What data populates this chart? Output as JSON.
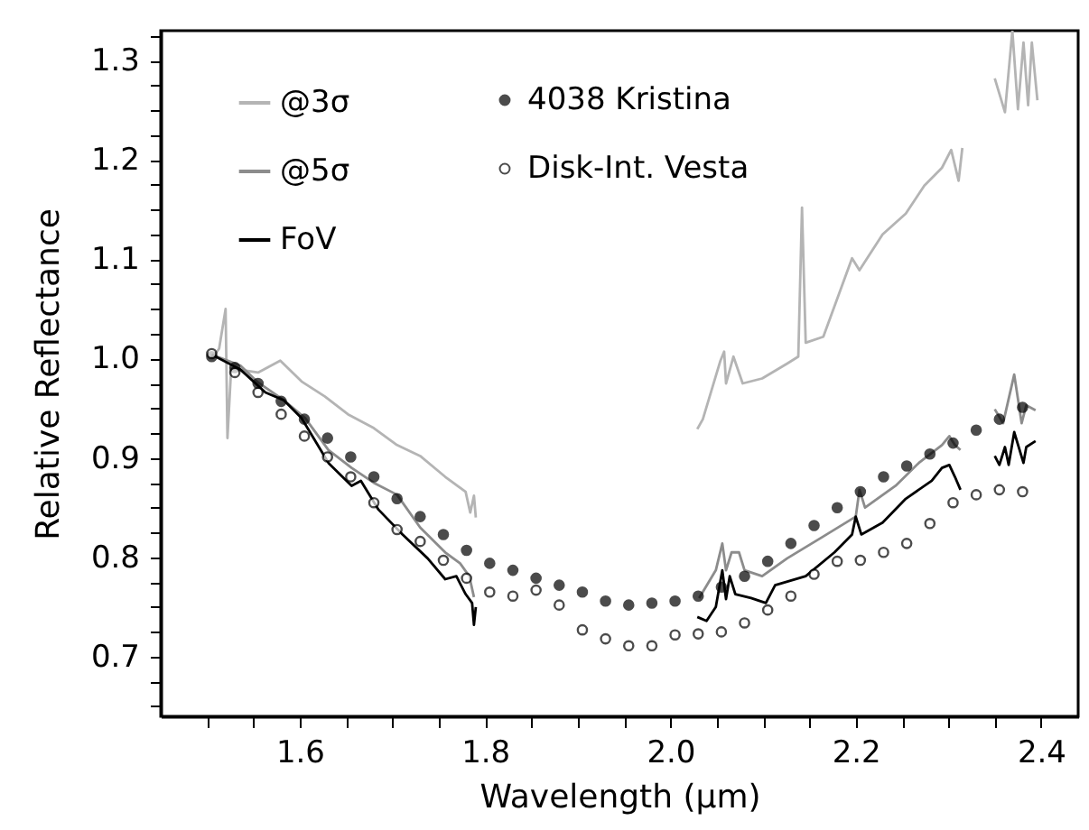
{
  "chart_data": {
    "type": "line",
    "xlabel": "Wavelength (μm)",
    "ylabel": "Relative Reflectance",
    "xlim": [
      1.45,
      2.44
    ],
    "ylim": [
      0.64,
      1.33
    ],
    "xticks": [
      {
        "value": 1.5,
        "label": null
      },
      {
        "value": 1.55,
        "label": null
      },
      1.6,
      {
        "value": 1.65,
        "label": null
      },
      {
        "value": 1.7,
        "label": null
      },
      {
        "value": 1.75,
        "label": null
      },
      1.8,
      {
        "value": 1.85,
        "label": null
      },
      {
        "value": 1.9,
        "label": null
      },
      {
        "value": 1.95,
        "label": null
      },
      {
        "value": 2.0,
        "label": "2.0"
      },
      {
        "value": 2.05,
        "label": null
      },
      {
        "value": 2.1,
        "label": null
      },
      {
        "value": 2.15,
        "label": null
      },
      2.2,
      {
        "value": 2.25,
        "label": null
      },
      {
        "value": 2.3,
        "label": null
      },
      {
        "value": 2.35,
        "label": null
      },
      2.4
    ],
    "yticks": [
      {
        "value": 0.65,
        "label": null
      },
      {
        "value": 0.675,
        "label": null
      },
      0.7,
      {
        "value": 0.725,
        "label": null
      },
      {
        "value": 0.75,
        "label": null
      },
      {
        "value": 0.775,
        "label": null
      },
      0.8,
      {
        "value": 0.825,
        "label": null
      },
      {
        "value": 0.85,
        "label": null
      },
      {
        "value": 0.875,
        "label": null
      },
      0.9,
      {
        "value": 0.925,
        "label": null
      },
      {
        "value": 0.95,
        "label": null
      },
      {
        "value": 0.975,
        "label": null
      },
      {
        "value": 1.0,
        "label": "1.0"
      },
      {
        "value": 1.025,
        "label": null
      },
      {
        "value": 1.05,
        "label": null
      },
      {
        "value": 1.075,
        "label": null
      },
      1.1,
      {
        "value": 1.125,
        "label": null
      },
      {
        "value": 1.15,
        "label": null
      },
      {
        "value": 1.175,
        "label": null
      },
      1.2,
      {
        "value": 1.225,
        "label": null
      },
      {
        "value": 1.25,
        "label": null
      },
      {
        "value": 1.275,
        "label": null
      },
      1.3,
      {
        "value": 1.325,
        "label": null
      }
    ],
    "grid": false,
    "legend": "top left",
    "series": [
      {
        "name": "@3σ",
        "color": "#b4b4b4",
        "x": [
          1.505,
          1.513,
          1.52,
          1.522,
          1.526,
          1.555,
          1.579,
          1.602,
          1.627,
          1.652,
          1.68,
          1.705,
          1.73,
          1.757,
          1.779,
          1.784,
          1.788,
          1.79,
          1.9,
          2.029,
          2.035,
          2.054,
          2.058,
          2.06,
          2.068,
          2.078,
          2.099,
          2.126,
          2.138,
          2.142,
          2.146,
          2.165,
          2.196,
          2.204,
          2.229,
          2.254,
          2.274,
          2.293,
          2.303,
          2.311,
          2.315,
          2.33,
          2.35,
          2.361,
          2.369,
          2.375,
          2.381,
          2.386,
          2.39,
          2.396
        ],
        "values": [
          1.0,
          1.01,
          1.05,
          0.92,
          0.99,
          0.986,
          0.998,
          0.977,
          0.962,
          0.944,
          0.93,
          0.913,
          0.902,
          0.881,
          0.866,
          0.845,
          0.862,
          0.84,
          null,
          0.929,
          0.939,
          0.998,
          1.007,
          0.975,
          1.002,
          0.975,
          0.98,
          0.995,
          1.002,
          1.152,
          1.016,
          1.022,
          1.101,
          1.089,
          1.125,
          1.146,
          1.174,
          1.192,
          1.21,
          1.179,
          1.212,
          null,
          1.282,
          1.248,
          1.33,
          1.251,
          1.318,
          1.255,
          1.318,
          1.26
        ]
      },
      {
        "name": "@5σ",
        "color": "#8c8c8c",
        "x": [
          1.505,
          1.536,
          1.555,
          1.583,
          1.606,
          1.631,
          1.656,
          1.68,
          1.705,
          1.73,
          1.757,
          1.773,
          1.783,
          1.788,
          1.9,
          2.031,
          2.049,
          2.056,
          2.06,
          2.066,
          2.074,
          2.08,
          2.099,
          2.126,
          2.165,
          2.2,
          2.204,
          2.21,
          2.243,
          2.268,
          2.293,
          2.301,
          2.307,
          2.313,
          2.33,
          2.35,
          2.359,
          2.371,
          2.379,
          2.384,
          2.394
        ],
        "values": [
          1.004,
          0.993,
          0.976,
          0.958,
          0.94,
          0.908,
          0.89,
          0.875,
          0.863,
          0.83,
          0.805,
          0.794,
          0.781,
          0.76,
          null,
          0.759,
          0.787,
          0.814,
          0.787,
          0.805,
          0.805,
          0.787,
          0.781,
          0.799,
          0.821,
          0.841,
          0.868,
          0.85,
          0.872,
          0.895,
          0.913,
          0.922,
          0.913,
          0.908,
          null,
          0.949,
          0.935,
          0.984,
          0.935,
          0.953,
          0.948
        ]
      },
      {
        "name": "FoV",
        "color": "#000000",
        "x": [
          1.505,
          1.536,
          1.563,
          1.583,
          1.602,
          1.631,
          1.656,
          1.666,
          1.685,
          1.711,
          1.738,
          1.757,
          1.769,
          1.779,
          1.786,
          1.788,
          1.79,
          1.9,
          2.029,
          2.039,
          2.049,
          2.056,
          2.06,
          2.064,
          2.07,
          2.087,
          2.103,
          2.113,
          2.146,
          2.177,
          2.196,
          2.2,
          2.206,
          2.229,
          2.254,
          2.282,
          2.293,
          2.301,
          2.307,
          2.313,
          2.33,
          2.35,
          2.355,
          2.361,
          2.365,
          2.371,
          2.381,
          2.384,
          2.394
        ],
        "values": [
          1.004,
          0.989,
          0.966,
          0.958,
          0.94,
          0.895,
          0.872,
          0.877,
          0.848,
          0.823,
          0.799,
          0.778,
          0.781,
          0.763,
          0.754,
          0.732,
          0.75,
          null,
          0.74,
          0.736,
          0.75,
          0.787,
          0.758,
          0.781,
          0.763,
          0.759,
          0.754,
          0.772,
          0.781,
          0.805,
          0.823,
          0.841,
          0.823,
          0.835,
          0.859,
          0.877,
          0.89,
          0.893,
          0.881,
          0.868,
          null,
          0.902,
          0.893,
          0.911,
          0.893,
          0.926,
          0.895,
          0.911,
          0.917
        ]
      },
      {
        "name": "4038 Kristina",
        "type": "scatter",
        "marker": "circle",
        "color": "#000000",
        "x": [
          1.505,
          1.53,
          1.555,
          1.58,
          1.605,
          1.63,
          1.655,
          1.68,
          1.705,
          1.73,
          1.755,
          1.78,
          1.805,
          1.83,
          1.855,
          1.88,
          1.905,
          1.93,
          1.955,
          1.98,
          2.005,
          2.03,
          2.055,
          2.08,
          2.105,
          2.13,
          2.155,
          2.18,
          2.205,
          2.23,
          2.255,
          2.28,
          2.305,
          2.33,
          2.355,
          2.38
        ],
        "values": [
          1.002,
          0.991,
          0.975,
          0.957,
          0.939,
          0.92,
          0.901,
          0.881,
          0.859,
          0.841,
          0.823,
          0.807,
          0.794,
          0.787,
          0.779,
          0.772,
          0.765,
          0.756,
          0.752,
          0.754,
          0.756,
          0.761,
          0.77,
          0.781,
          0.796,
          0.814,
          0.832,
          0.85,
          0.866,
          0.881,
          0.892,
          0.904,
          0.915,
          0.928,
          0.939,
          0.951
        ]
      },
      {
        "name": "Disk-Int. Vesta",
        "type": "scatter",
        "marker": "circle",
        "color": "#ffffff",
        "x": [
          1.505,
          1.53,
          1.555,
          1.58,
          1.605,
          1.63,
          1.655,
          1.68,
          1.705,
          1.73,
          1.755,
          1.78,
          1.805,
          1.83,
          1.855,
          1.88,
          1.905,
          1.93,
          1.955,
          1.98,
          2.005,
          2.03,
          2.055,
          2.08,
          2.105,
          2.13,
          2.155,
          2.18,
          2.205,
          2.23,
          2.255,
          2.28,
          2.305,
          2.33,
          2.355,
          2.38
        ],
        "values": [
          1.005,
          0.986,
          0.966,
          0.944,
          0.922,
          0.901,
          0.881,
          0.855,
          0.828,
          0.816,
          0.797,
          0.779,
          0.765,
          0.761,
          0.767,
          0.752,
          0.727,
          0.718,
          0.711,
          0.711,
          0.722,
          0.723,
          0.725,
          0.734,
          0.747,
          0.761,
          0.783,
          0.796,
          0.797,
          0.805,
          0.814,
          0.834,
          0.855,
          0.863,
          0.868,
          0.866
        ]
      }
    ]
  }
}
